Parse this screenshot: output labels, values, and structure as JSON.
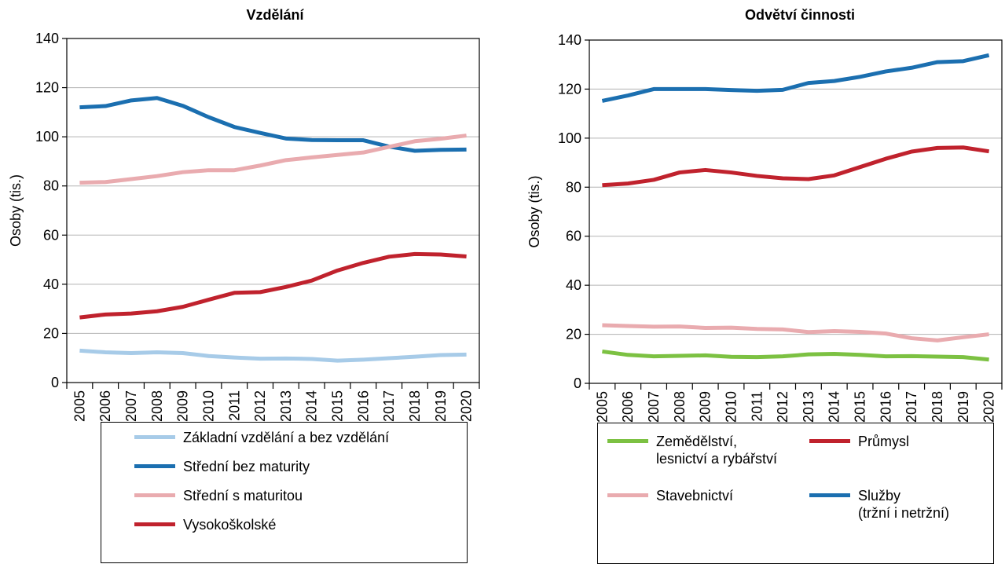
{
  "chart_data": [
    {
      "type": "line",
      "title": "Vzdělání",
      "ylabel": "Osoby (tis.)",
      "categories": [
        "2005",
        "2006",
        "2007",
        "2008",
        "2009",
        "2010",
        "2011",
        "2012",
        "2013",
        "2014",
        "2015",
        "2016",
        "2017",
        "2018",
        "2019",
        "2020"
      ],
      "ylim": [
        0,
        140
      ],
      "yticks": [
        0,
        20,
        40,
        60,
        80,
        100,
        120,
        140
      ],
      "grid": true,
      "legend_columns": 1,
      "series": [
        {
          "name": "Základní vzdělání a bez vzdělání",
          "color": "#a7cbe8",
          "values": [
            13,
            12.3,
            12,
            12.3,
            12,
            10.8,
            10.2,
            9.7,
            9.8,
            9.6,
            8.9,
            9.3,
            9.9,
            10.5,
            11.2,
            11.4
          ]
        },
        {
          "name": "Střední bez maturity",
          "color": "#1b6fb0",
          "values": [
            112,
            112.5,
            114.8,
            115.8,
            112.6,
            108,
            104,
            101.6,
            99.3,
            98.7,
            98.6,
            98.6,
            96,
            94.3,
            94.7,
            94.8
          ]
        },
        {
          "name": "Střední s maturitou",
          "color": "#e9abaf",
          "values": [
            81.3,
            81.6,
            82.8,
            84,
            85.6,
            86.4,
            86.4,
            88.3,
            90.5,
            91.6,
            92.6,
            93.6,
            95.9,
            98.2,
            99.2,
            100.5
          ]
        },
        {
          "name": "Vysokoškolské",
          "color": "#c0222d",
          "values": [
            26.5,
            27.7,
            28.1,
            29,
            30.8,
            33.7,
            36.5,
            36.8,
            38.9,
            41.5,
            45.6,
            48.7,
            51.2,
            52.3,
            52.1,
            51.3
          ]
        }
      ]
    },
    {
      "type": "line",
      "title": "Odvětví činnosti",
      "ylabel": "Osoby (tis.)",
      "categories": [
        "2005",
        "2006",
        "2007",
        "2008",
        "2009",
        "2010",
        "2011",
        "2012",
        "2013",
        "2014",
        "2015",
        "2016",
        "2017",
        "2018",
        "2019",
        "2020"
      ],
      "ylim": [
        0,
        140
      ],
      "yticks": [
        0,
        20,
        40,
        60,
        80,
        100,
        120,
        140
      ],
      "grid": true,
      "legend_columns": 2,
      "series": [
        {
          "name": "Zemědělství,\nlesnictví a rybářství",
          "color": "#7cc142",
          "values": [
            13,
            11.6,
            11,
            11.2,
            11.4,
            10.8,
            10.7,
            11,
            11.8,
            12,
            11.6,
            11,
            11.1,
            10.9,
            10.7,
            9.7
          ]
        },
        {
          "name": "Průmysl",
          "color": "#c0222d",
          "values": [
            80.8,
            81.5,
            83,
            86,
            87,
            86,
            84.6,
            83.6,
            83.3,
            84.8,
            88.2,
            91.6,
            94.5,
            96,
            96.2,
            94.6
          ]
        },
        {
          "name": "Stavebnictví",
          "color": "#e9abaf",
          "values": [
            23.7,
            23.4,
            23.1,
            23.2,
            22.6,
            22.7,
            22.2,
            22,
            20.9,
            21.3,
            21,
            20.3,
            18.4,
            17.5,
            18.8,
            20
          ]
        },
        {
          "name": "Služby\n(tržní i netržní)",
          "color": "#1b6fb0",
          "values": [
            115.2,
            117.4,
            120,
            120,
            120,
            119.6,
            119.3,
            119.7,
            122.5,
            123.3,
            125,
            127.2,
            128.7,
            131,
            131.4,
            133.8
          ]
        }
      ]
    }
  ]
}
